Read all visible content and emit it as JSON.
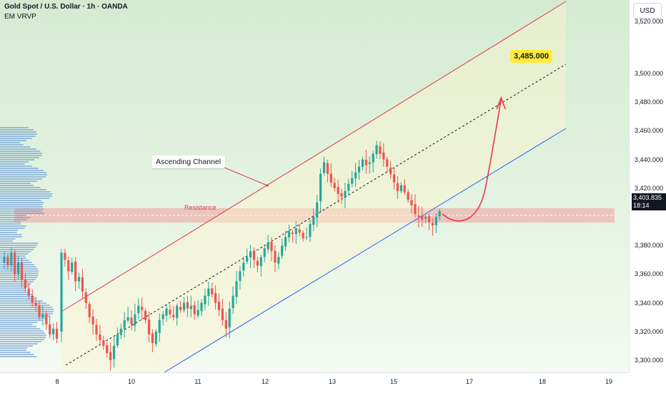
{
  "header": {
    "title": "Gold Spot / U.S. Dollar · 1h · OANDA",
    "indicator": "EM VRVP"
  },
  "axis": {
    "currency": "USD",
    "y_ticks": [
      "3,520.000",
      "3,500.000",
      "3,480.000",
      "3,460.000",
      "3,440.000",
      "3,420.000",
      "3,380.000",
      "3,360.000",
      "3,340.000",
      "3,320.000",
      "3,300.000"
    ],
    "x_ticks": [
      "8",
      "10",
      "11",
      "12",
      "13",
      "15",
      "17",
      "18",
      "19"
    ]
  },
  "price_tag": {
    "price": "3,403.835",
    "countdown": "18:14"
  },
  "annotations": {
    "channel_label": "Ascending Channel",
    "zone_label": "Resistance",
    "target_label": "3,485.000"
  },
  "colors": {
    "up": "#26a69a",
    "down": "#ef5350",
    "channel_upper": "#e53950",
    "channel_lower": "#2962ff",
    "target_bg": "#ffeb3b",
    "volume_profile": "#5b8fd6"
  },
  "chart_data": {
    "type": "candlestick",
    "symbol": "XAUUSD",
    "timeframe": "1h",
    "ylim": [
      3290,
      3525
    ],
    "y_ticks": [
      3300,
      3320,
      3340,
      3360,
      3380,
      3400,
      3420,
      3440,
      3460,
      3480,
      3500,
      3520
    ],
    "x_ticks": [
      "8",
      "10",
      "11",
      "12",
      "13",
      "15",
      "17",
      "18",
      "19"
    ],
    "close_path": [
      3375,
      3370,
      3362,
      3368,
      3355,
      3358,
      3348,
      3340,
      3330,
      3325,
      3318,
      3314,
      3310,
      3305,
      3300,
      3310,
      3318,
      3322,
      3328,
      3330,
      3325,
      3332,
      3338,
      3335,
      3328,
      3318,
      3312,
      3320,
      3328,
      3332,
      3336,
      3332,
      3330,
      3338,
      3335,
      3340,
      3336,
      3338,
      3332,
      3335,
      3340,
      3345,
      3350,
      3346,
      3340,
      3335,
      3328,
      3322,
      3336,
      3345,
      3355,
      3362,
      3368,
      3372,
      3376,
      3370,
      3366,
      3372,
      3378,
      3382,
      3376,
      3368,
      3372,
      3380,
      3386,
      3390,
      3388,
      3392,
      3389,
      3385,
      3386,
      3395,
      3400,
      3410,
      3430,
      3438,
      3430,
      3424,
      3420,
      3416,
      3414,
      3418,
      3423,
      3427,
      3431,
      3435,
      3440,
      3436,
      3438,
      3444,
      3450,
      3444,
      3440,
      3435,
      3430,
      3424,
      3418,
      3422,
      3417,
      3412,
      3408,
      3402,
      3400,
      3398,
      3400,
      3396,
      3394,
      3400,
      3404
    ],
    "volume_profile": "present",
    "resistance_zone": [
      3396,
      3406
    ],
    "resistance_level": 3401,
    "channel": {
      "upper": [
        [
          0,
          3340
        ],
        [
          108,
          3525
        ]
      ],
      "lower": [
        [
          30,
          3290
        ],
        [
          110,
          3450
        ]
      ],
      "mid": [
        [
          0,
          3290
        ],
        [
          110,
          3490
        ]
      ]
    },
    "projection": {
      "from": 3402,
      "dip": 3400,
      "target": 3485
    },
    "last_price": 3403.835
  }
}
